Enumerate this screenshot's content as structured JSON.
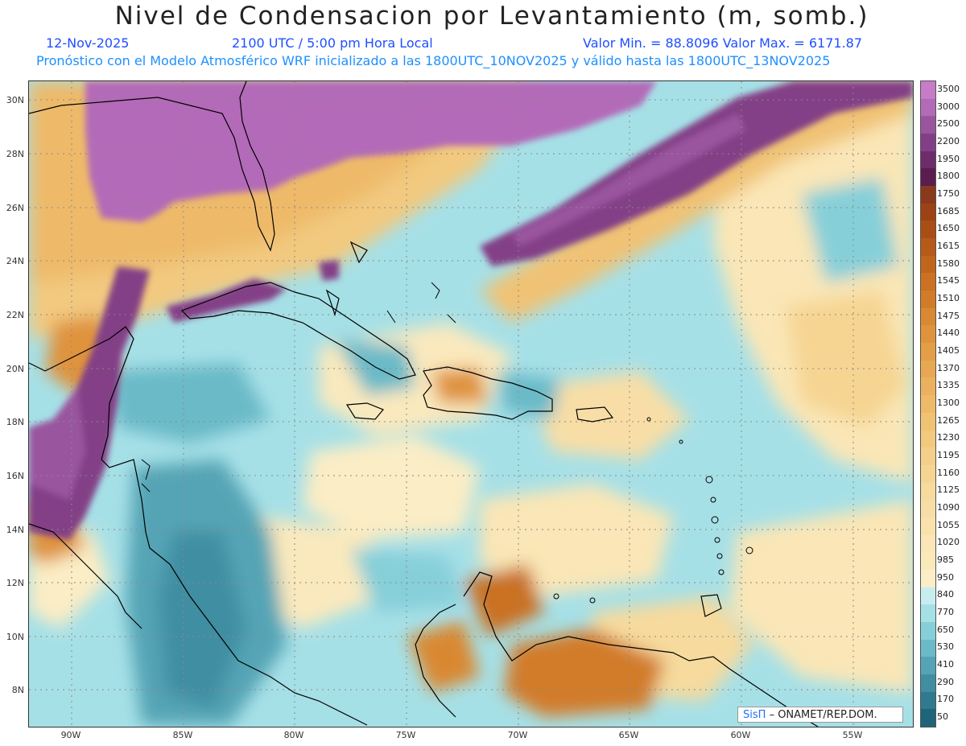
{
  "title": "Nivel de Condensacion por Levantamiento (m, somb.)",
  "date": "12-Nov-2025",
  "time": "2100 UTC / 5:00 pm Hora Local",
  "minmax": "Valor Min. = 88.8096  Valor Max. = 6171.87",
  "forecast": "Pronóstico con el Modelo Atmosférico WRF inicializado a las 1800UTC_10NOV2025 y válido hasta las  1800UTC_13NOV2025",
  "credit": {
    "sis": "SisΠ",
    "text": "– ONAMET/REP.DOM."
  },
  "lat_labels": [
    "30N",
    "28N",
    "26N",
    "24N",
    "22N",
    "20N",
    "18N",
    "16N",
    "14N",
    "12N",
    "10N",
    "8N"
  ],
  "lon_labels": [
    "90W",
    "85W",
    "80W",
    "75W",
    "70W",
    "65W",
    "60W",
    "55W"
  ],
  "colorbar": {
    "labels": [
      "3500",
      "3000",
      "2500",
      "2200",
      "1950",
      "1800",
      "1750",
      "1685",
      "1650",
      "1615",
      "1580",
      "1545",
      "1510",
      "1475",
      "1440",
      "1405",
      "1370",
      "1335",
      "1300",
      "1265",
      "1230",
      "1195",
      "1160",
      "1125",
      "1090",
      "1055",
      "1020",
      "985",
      "950",
      "840",
      "770",
      "650",
      "530",
      "410",
      "290",
      "170",
      "50"
    ],
    "colors": [
      "#c77cc7",
      "#b36bb8",
      "#9a559f",
      "#833f86",
      "#6e2c6c",
      "#5a1d4e",
      "#8a3a1c",
      "#9b4315",
      "#a94e16",
      "#b55a18",
      "#c0651c",
      "#ca7122",
      "#d27c2a",
      "#d98833",
      "#df933d",
      "#e49e48",
      "#e8a853",
      "#ebb15e",
      "#eeba69",
      "#f0c274",
      "#f2c97f",
      "#f4cf89",
      "#f6d593",
      "#f7da9d",
      "#f8dea6",
      "#f9e2ae",
      "#fae6b6",
      "#fae9bd",
      "#fbedc5",
      "#c8edf0",
      "#a6e0e7",
      "#86cfd9",
      "#6bbac8",
      "#55a4b5",
      "#418ea2",
      "#307a8f",
      "#206479"
    ]
  }
}
